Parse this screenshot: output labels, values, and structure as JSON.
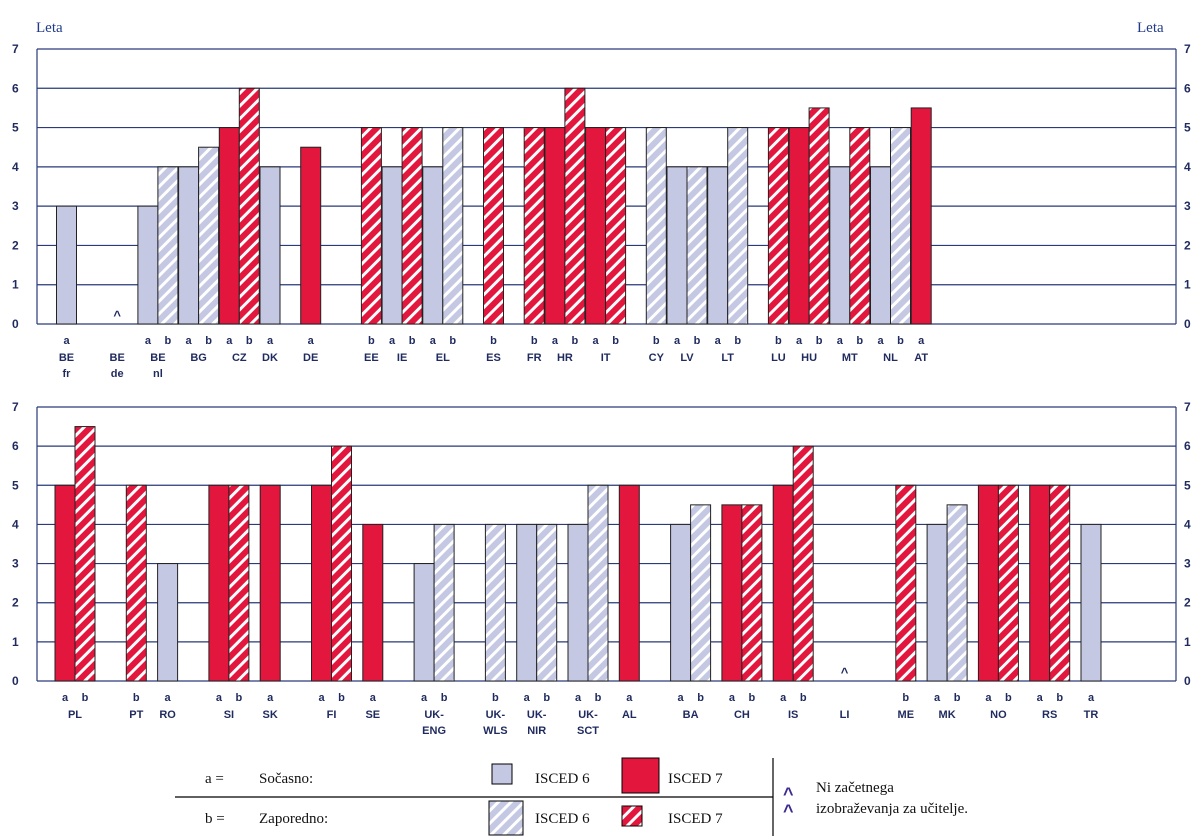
{
  "chart_data": [
    {
      "type": "bar",
      "ylabel_left": "Leta",
      "ylabel_right": "Leta",
      "ylim": [
        0,
        7
      ],
      "yticks": [
        "0",
        "1",
        "2",
        "3",
        "4",
        "5",
        "6",
        "7"
      ],
      "categories": [
        {
          "label": [
            "BE",
            "fr"
          ],
          "a": {
            "isced": 6,
            "value": 3
          },
          "b": null
        },
        {
          "label": [
            "BE",
            "de"
          ],
          "a": null,
          "b": null,
          "none": true
        },
        {
          "label": [
            "BE",
            "nl"
          ],
          "a": {
            "isced": 6,
            "value": 3
          },
          "b": {
            "isced": 6,
            "value": 4
          }
        },
        {
          "label": [
            "BG"
          ],
          "a": {
            "isced": 6,
            "value": 4
          },
          "b": {
            "isced": 6,
            "value": 4.5
          }
        },
        {
          "label": [
            "CZ"
          ],
          "a": {
            "isced": 7,
            "value": 5
          },
          "b": {
            "isced": 7,
            "value": 6
          }
        },
        {
          "label": [
            "DK"
          ],
          "a": {
            "isced": 6,
            "value": 4
          },
          "b": null
        },
        {
          "label": [
            "DE"
          ],
          "a": {
            "isced": 7,
            "value": 4.5
          },
          "b": null
        },
        {
          "label": [
            "EE"
          ],
          "a": null,
          "b": {
            "isced": 7,
            "value": 5
          }
        },
        {
          "label": [
            "IE"
          ],
          "a": {
            "isced": 6,
            "value": 4
          },
          "b": {
            "isced": 7,
            "value": 5
          }
        },
        {
          "label": [
            "EL"
          ],
          "a": {
            "isced": 6,
            "value": 4
          },
          "b": {
            "isced": 6,
            "value": 5
          }
        },
        {
          "label": [
            "ES"
          ],
          "a": null,
          "b": {
            "isced": 7,
            "value": 5
          }
        },
        {
          "label": [
            "FR"
          ],
          "a": null,
          "b": {
            "isced": 7,
            "value": 5
          }
        },
        {
          "label": [
            "HR"
          ],
          "a": {
            "isced": 7,
            "value": 5
          },
          "b": {
            "isced": 7,
            "value": 6
          }
        },
        {
          "label": [
            "IT"
          ],
          "a": {
            "isced": 7,
            "value": 5
          },
          "b": {
            "isced": 7,
            "value": 5
          }
        },
        {
          "label": [
            "CY"
          ],
          "a": null,
          "b": {
            "isced": 6,
            "value": 5
          }
        },
        {
          "label": [
            "LV"
          ],
          "a": {
            "isced": 6,
            "value": 4
          },
          "b": {
            "isced": 6,
            "value": 4
          }
        },
        {
          "label": [
            "LT"
          ],
          "a": {
            "isced": 6,
            "value": 4
          },
          "b": {
            "isced": 6,
            "value": 5
          }
        },
        {
          "label": [
            "LU"
          ],
          "a": null,
          "b": {
            "isced": 7,
            "value": 5
          }
        },
        {
          "label": [
            "HU"
          ],
          "a": {
            "isced": 7,
            "value": 5
          },
          "b": {
            "isced": 7,
            "value": 5.5
          }
        },
        {
          "label": [
            "MT"
          ],
          "a": {
            "isced": 6,
            "value": 4
          },
          "b": {
            "isced": 7,
            "value": 5
          }
        },
        {
          "label": [
            "NL"
          ],
          "a": {
            "isced": 6,
            "value": 4
          },
          "b": {
            "isced": 6,
            "value": 5
          }
        },
        {
          "label": [
            "AT"
          ],
          "a": {
            "isced": 7,
            "value": 5.5
          },
          "b": null
        }
      ]
    },
    {
      "type": "bar",
      "ylim": [
        0,
        7
      ],
      "yticks": [
        "0",
        "1",
        "2",
        "3",
        "4",
        "5",
        "6",
        "7"
      ],
      "categories": [
        {
          "label": [
            "PL"
          ],
          "a": {
            "isced": 7,
            "value": 5
          },
          "b": {
            "isced": 7,
            "value": 6.5
          }
        },
        {
          "label": [
            "PT"
          ],
          "a": null,
          "b": {
            "isced": 7,
            "value": 5
          }
        },
        {
          "label": [
            "RO"
          ],
          "a": {
            "isced": 6,
            "value": 3
          },
          "b": null
        },
        {
          "label": [
            "SI"
          ],
          "a": {
            "isced": 7,
            "value": 5
          },
          "b": {
            "isced": 7,
            "value": 5
          }
        },
        {
          "label": [
            "SK"
          ],
          "a": {
            "isced": 7,
            "value": 5
          },
          "b": null
        },
        {
          "label": [
            "FI"
          ],
          "a": {
            "isced": 7,
            "value": 5
          },
          "b": {
            "isced": 7,
            "value": 6
          }
        },
        {
          "label": [
            "SE"
          ],
          "a": {
            "isced": 7,
            "value": 4
          },
          "b": null
        },
        {
          "label": [
            "UK-",
            "ENG"
          ],
          "a": {
            "isced": 6,
            "value": 3
          },
          "b": {
            "isced": 6,
            "value": 4
          }
        },
        {
          "label": [
            "UK-",
            "WLS"
          ],
          "a": null,
          "b": {
            "isced": 6,
            "value": 4
          }
        },
        {
          "label": [
            "UK-",
            "NIR"
          ],
          "a": {
            "isced": 6,
            "value": 4
          },
          "b": {
            "isced": 6,
            "value": 4
          }
        },
        {
          "label": [
            "UK-",
            "SCT"
          ],
          "a": {
            "isced": 6,
            "value": 4
          },
          "b": {
            "isced": 6,
            "value": 5
          }
        },
        {
          "label": [
            "AL"
          ],
          "a": {
            "isced": 7,
            "value": 5
          },
          "b": null
        },
        {
          "label": [
            "BA"
          ],
          "a": {
            "isced": 6,
            "value": 4
          },
          "b": {
            "isced": 6,
            "value": 4.5
          }
        },
        {
          "label": [
            "CH"
          ],
          "a": {
            "isced": 7,
            "value": 4.5
          },
          "b": {
            "isced": 7,
            "value": 4.5
          }
        },
        {
          "label": [
            "IS"
          ],
          "a": {
            "isced": 7,
            "value": 5
          },
          "b": {
            "isced": 7,
            "value": 6
          }
        },
        {
          "label": [
            "LI"
          ],
          "a": null,
          "b": null,
          "none": true
        },
        {
          "label": [
            "ME"
          ],
          "a": null,
          "b": {
            "isced": 7,
            "value": 5
          }
        },
        {
          "label": [
            "MK"
          ],
          "a": {
            "isced": 6,
            "value": 4
          },
          "b": {
            "isced": 6,
            "value": 4.5
          }
        },
        {
          "label": [
            "NO"
          ],
          "a": {
            "isced": 7,
            "value": 5
          },
          "b": {
            "isced": 7,
            "value": 5
          }
        },
        {
          "label": [
            "RS"
          ],
          "a": {
            "isced": 7,
            "value": 5
          },
          "b": {
            "isced": 7,
            "value": 5
          }
        },
        {
          "label": [
            "TR"
          ],
          "a": {
            "isced": 6,
            "value": 4
          },
          "b": null
        }
      ]
    }
  ],
  "legend": {
    "a_key": "a =",
    "a_text": "Sočasno:",
    "b_key": "b =",
    "b_text": "Zaporedno:",
    "isced6": "ISCED 6",
    "isced7": "ISCED 7",
    "none_symbol": "^",
    "none_line1": "Ni začetnega",
    "none_line2": "izobraževanja za učitelje."
  },
  "colors": {
    "isced6": "#c5c8e3",
    "isced7": "#e3173e",
    "stripe": "#ffffff",
    "grid": "#2a3a7a",
    "text": "#1f2a5e"
  }
}
